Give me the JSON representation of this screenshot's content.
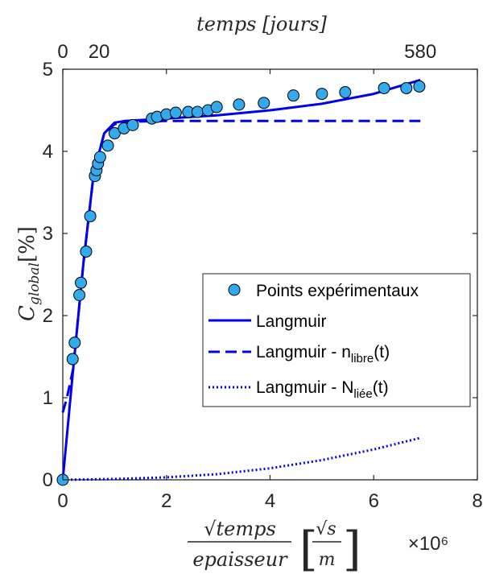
{
  "chart_data": {
    "type": "line",
    "xlabel": {
      "numerator": "√temps",
      "denominator": "epaisseur",
      "unit_numerator": "√s",
      "unit_denominator": "m"
    },
    "x_exponent": "×10⁶",
    "ylabel": {
      "main": "C",
      "subscript": "global",
      "unit": "[%]"
    },
    "top_axis_label": "temps [jours]",
    "top_ticks": [
      {
        "x": 0,
        "label": "0"
      },
      {
        "x": 0.7,
        "label": "20"
      },
      {
        "x": 6.9,
        "label": "580"
      }
    ],
    "xlim": [
      0,
      8
    ],
    "ylim": [
      0,
      5
    ],
    "x_ticks": [
      0,
      2,
      4,
      6,
      8
    ],
    "y_ticks": [
      0,
      1,
      2,
      3,
      4,
      5
    ],
    "grid": false,
    "legend_position": "center-right",
    "series": [
      {
        "name": "Points expérimentaux",
        "style": "markers",
        "color": "#33aaee",
        "x": [
          0,
          0.19,
          0.23,
          0.32,
          0.35,
          0.45,
          0.53,
          0.62,
          0.65,
          0.68,
          0.72,
          0.87,
          1.0,
          1.18,
          1.35,
          1.72,
          1.82,
          2.0,
          2.18,
          2.42,
          2.6,
          2.8,
          2.97,
          3.4,
          3.88,
          4.45,
          5.0,
          5.45,
          6.2,
          6.63,
          6.88
        ],
        "y": [
          0,
          1.47,
          1.67,
          2.25,
          2.4,
          2.78,
          3.21,
          3.7,
          3.77,
          3.85,
          3.93,
          4.07,
          4.22,
          4.28,
          4.32,
          4.4,
          4.42,
          4.45,
          4.47,
          4.48,
          4.48,
          4.5,
          4.54,
          4.57,
          4.59,
          4.68,
          4.7,
          4.72,
          4.77,
          4.77,
          4.79
        ]
      },
      {
        "name": "Langmuir",
        "style": "solid",
        "color": "#0000ee",
        "x": [
          0,
          0.2,
          0.4,
          0.6,
          0.8,
          1.0,
          1.2,
          2.0,
          3.0,
          4.0,
          5.0,
          6.0,
          6.9
        ],
        "y": [
          0,
          1.35,
          2.65,
          3.75,
          4.22,
          4.35,
          4.37,
          4.4,
          4.44,
          4.5,
          4.58,
          4.7,
          4.87
        ]
      },
      {
        "name": "Langmuir - n_libre(t)",
        "style": "dashed",
        "color": "#0000ee",
        "x": [
          0,
          0.08,
          0.2,
          0.4,
          0.6,
          0.8,
          1.0,
          1.2,
          2.0,
          3.0,
          4.0,
          5.0,
          6.0,
          6.9
        ],
        "y": [
          0.82,
          1.0,
          1.35,
          2.65,
          3.75,
          4.22,
          4.33,
          4.36,
          4.37,
          4.37,
          4.37,
          4.37,
          4.37,
          4.37
        ]
      },
      {
        "name": "Langmuir - N_liée(t)",
        "style": "dotted",
        "color": "#0000ee",
        "x": [
          0,
          0.5,
          1.0,
          2.0,
          3.0,
          4.0,
          5.0,
          6.0,
          6.9
        ],
        "y": [
          0,
          0.005,
          0.01,
          0.03,
          0.07,
          0.14,
          0.24,
          0.37,
          0.51
        ]
      }
    ],
    "legend": [
      {
        "text": "Points expérimentaux",
        "sub": "",
        "suffix": ""
      },
      {
        "text": "Langmuir",
        "sub": "",
        "suffix": ""
      },
      {
        "text": "Langmuir - n",
        "sub": "libre",
        "suffix": "(t)"
      },
      {
        "text": "Langmuir - N",
        "sub": "liée",
        "suffix": "(t)"
      }
    ]
  }
}
